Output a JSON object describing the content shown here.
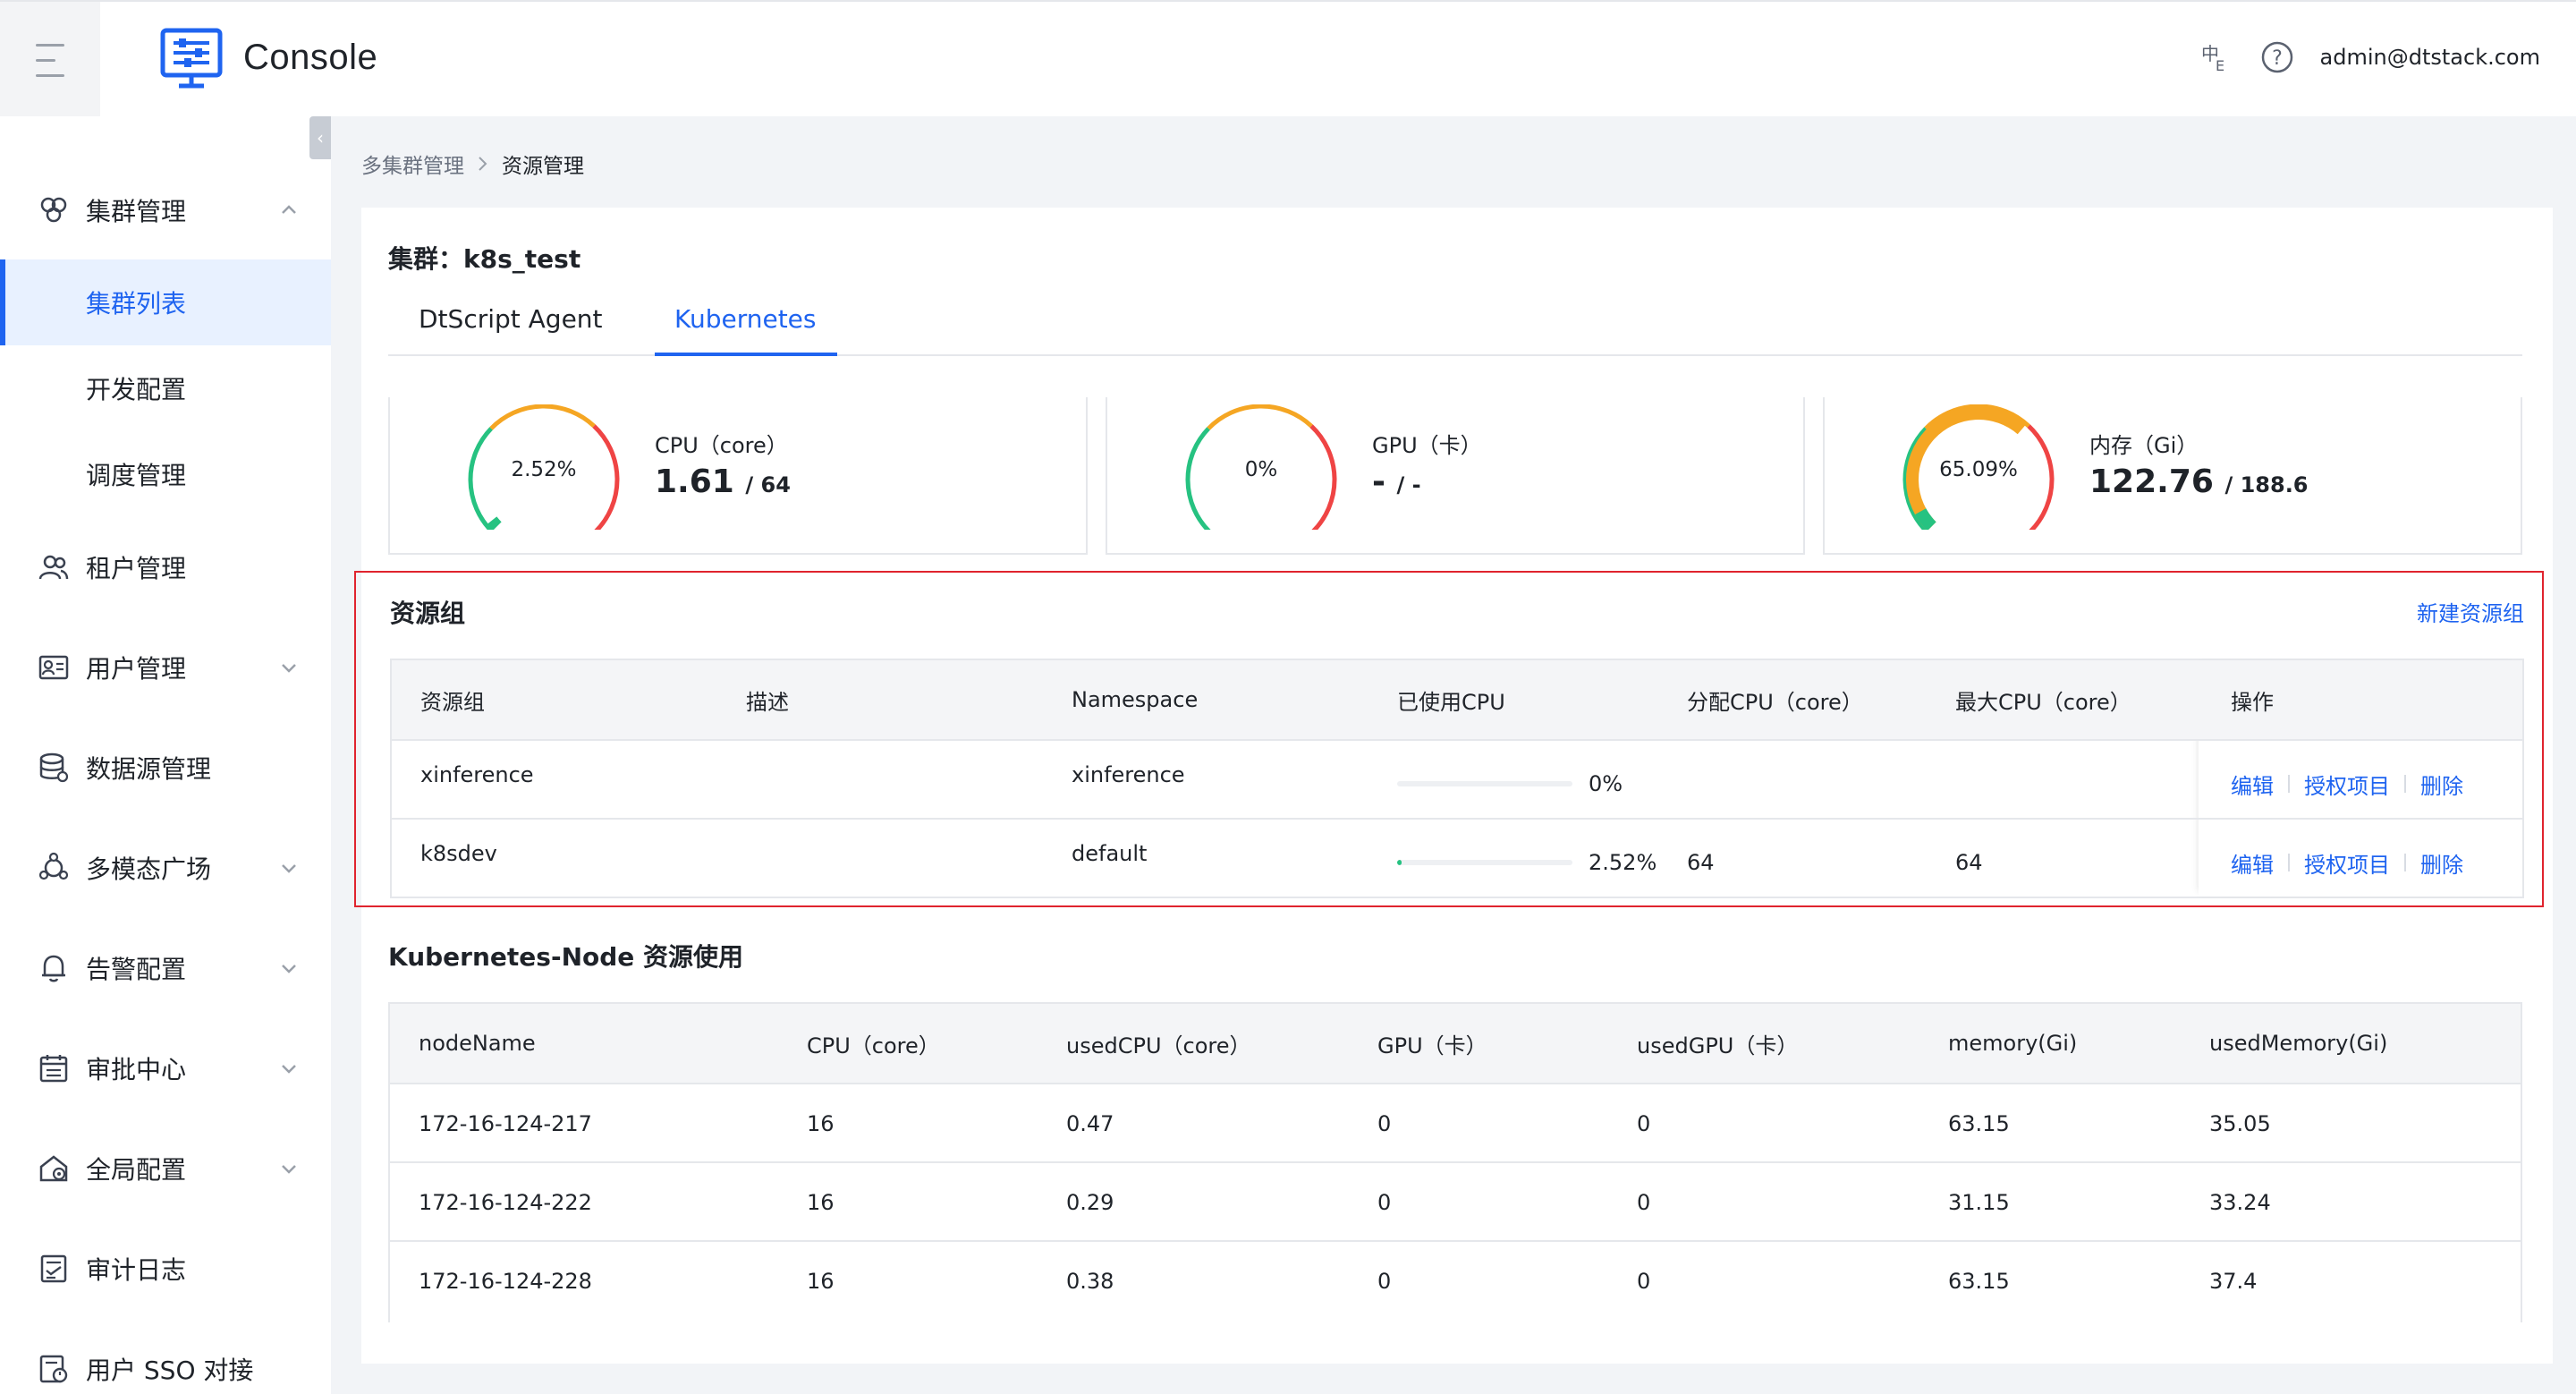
{
  "header": {
    "brand": "Console",
    "user": "admin@dtstack.com",
    "lang_icon": "translate-icon",
    "help_icon": "help-icon"
  },
  "sidebar": {
    "items": [
      {
        "label": "集群管理",
        "icon": "cluster-icon",
        "expanded": true
      },
      {
        "label": "集群列表",
        "sub": true,
        "active": true
      },
      {
        "label": "开发配置",
        "sub": true
      },
      {
        "label": "调度管理",
        "sub": true
      },
      {
        "label": "租户管理",
        "icon": "tenant-icon"
      },
      {
        "label": "用户管理",
        "icon": "user-card-icon",
        "chevron": true
      },
      {
        "label": "数据源管理",
        "icon": "database-icon"
      },
      {
        "label": "多模态广场",
        "icon": "multimodal-icon",
        "chevron": true
      },
      {
        "label": "告警配置",
        "icon": "bell-icon",
        "chevron": true
      },
      {
        "label": "审批中心",
        "icon": "calendar-icon",
        "chevron": true
      },
      {
        "label": "全局配置",
        "icon": "global-settings-icon",
        "chevron": true
      },
      {
        "label": "审计日志",
        "icon": "audit-log-icon"
      },
      {
        "label": "用户 SSO 对接",
        "icon": "sso-icon"
      }
    ]
  },
  "breadcrumb": {
    "parent": "多集群管理",
    "current": "资源管理"
  },
  "cluster": {
    "label": "集群：",
    "name": "k8s_test"
  },
  "tabs": [
    {
      "label": "DtScript Agent"
    },
    {
      "label": "Kubernetes",
      "active": true
    }
  ],
  "stats": [
    {
      "label": "CPU（core）",
      "percent_text": "2.52%",
      "percent": 2.52,
      "used": "1.61",
      "total": "/ 64"
    },
    {
      "label": "GPU（卡）",
      "percent_text": "0%",
      "percent": 0,
      "used": "-",
      "total": "/ -"
    },
    {
      "label": "内存（Gi）",
      "percent_text": "65.09%",
      "percent": 65.09,
      "used": "122.76",
      "total": "/ 188.6"
    }
  ],
  "resource_groups": {
    "title": "资源组",
    "new_label": "新建资源组",
    "columns": [
      "资源组",
      "描述",
      "Namespace",
      "已使用CPU",
      "分配CPU（core）",
      "最大CPU（core）",
      "操作"
    ],
    "rows": [
      {
        "name": "xinference",
        "desc": "",
        "namespace": "xinference",
        "used_pct": 0,
        "used_text": "0%",
        "alloc": "",
        "max": ""
      },
      {
        "name": "k8sdev",
        "desc": "",
        "namespace": "default",
        "used_pct": 2.52,
        "used_text": "2.52%",
        "alloc": "64",
        "max": "64"
      }
    ],
    "actions": [
      "编辑",
      "授权项目",
      "删除"
    ]
  },
  "nodes": {
    "title": "Kubernetes-Node 资源使用",
    "columns": [
      "nodeName",
      "CPU（core）",
      "usedCPU（core）",
      "GPU（卡）",
      "usedGPU（卡）",
      "memory(Gi)",
      "usedMemory(Gi)"
    ],
    "rows": [
      [
        "172-16-124-217",
        "16",
        "0.47",
        "0",
        "0",
        "63.15",
        "35.05"
      ],
      [
        "172-16-124-222",
        "16",
        "0.29",
        "0",
        "0",
        "31.15",
        "33.24"
      ],
      [
        "172-16-124-228",
        "16",
        "0.38",
        "0",
        "0",
        "63.15",
        "37.4"
      ]
    ]
  },
  "colors": {
    "primary": "#1f64f0",
    "danger": "#e0242e",
    "gauge_green": "#26c281",
    "gauge_orange": "#f5a623",
    "gauge_red": "#ef4444"
  }
}
